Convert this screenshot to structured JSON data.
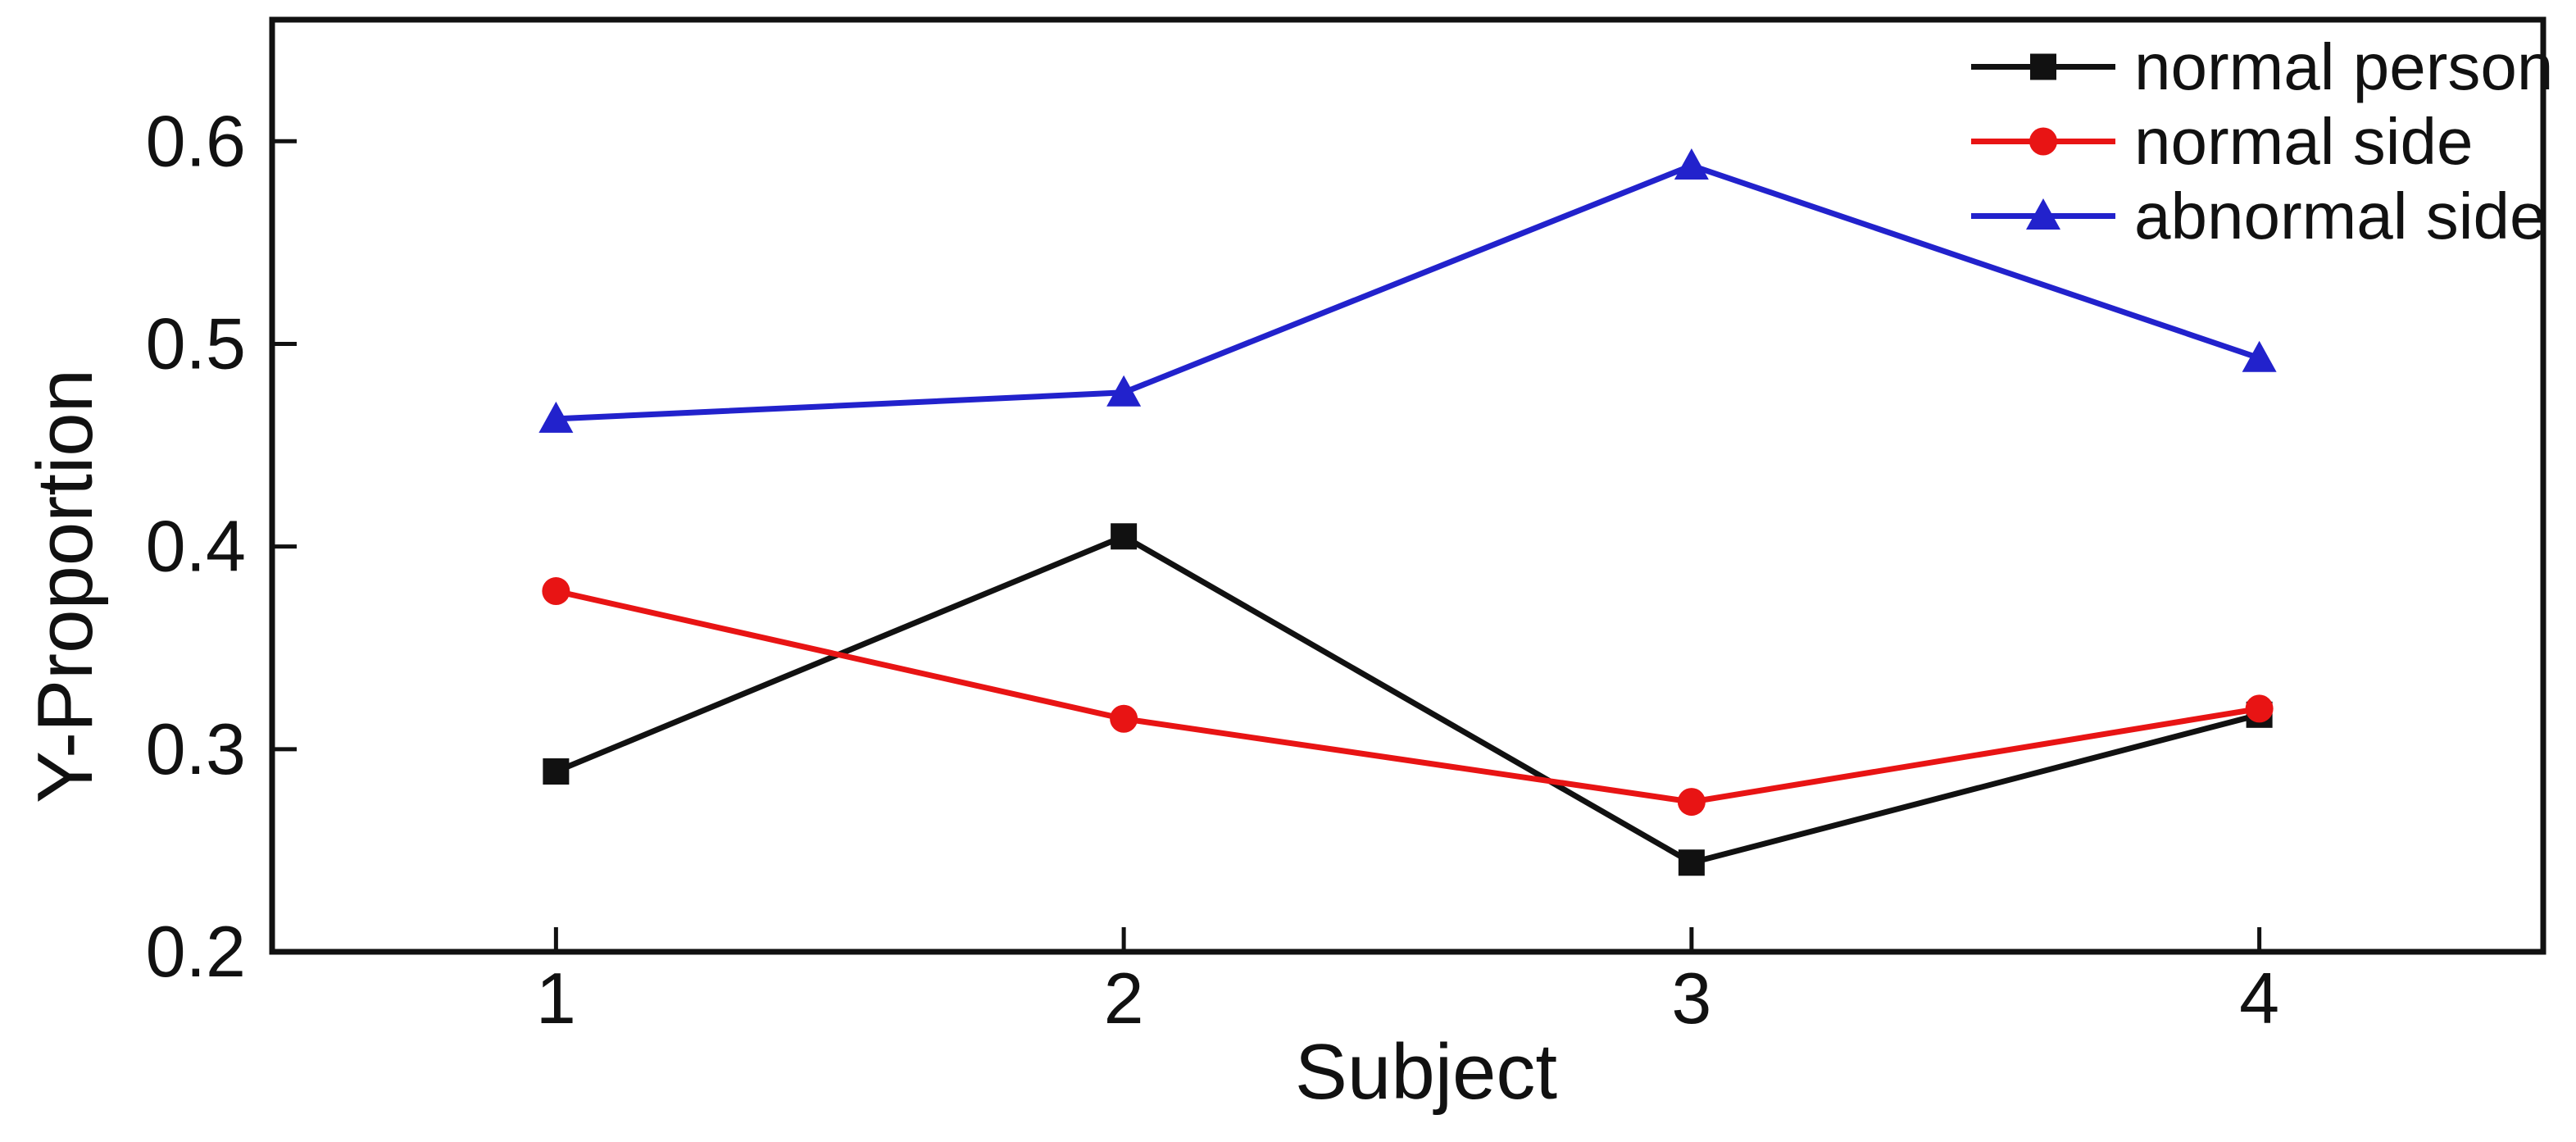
{
  "figure": {
    "background": "#ffffff",
    "axis_color": "#111111"
  },
  "chart_data": {
    "type": "line",
    "title": "",
    "xlabel": "Subject",
    "ylabel": "Y-Proportion",
    "categories": [
      1,
      2,
      3,
      4
    ],
    "x_tick_labels": [
      "1",
      "2",
      "3",
      "4"
    ],
    "y_tick_labels": [
      "0.2",
      "0.3",
      "0.4",
      "0.5",
      "0.6"
    ],
    "y_tick_values": [
      0.2,
      0.3,
      0.4,
      0.5,
      0.6
    ],
    "xlim": [
      0.5,
      4.5
    ],
    "ylim": [
      0.2,
      0.66
    ],
    "grid": false,
    "legend_position": "top-right-inside",
    "series": [
      {
        "name": "normal person",
        "marker": "square",
        "color": "#111111",
        "values": [
          0.289,
          0.405,
          0.244,
          0.317
        ]
      },
      {
        "name": "normal side",
        "marker": "circle",
        "color": "#e81414",
        "values": [
          0.378,
          0.315,
          0.274,
          0.32
        ]
      },
      {
        "name": "abnormal side",
        "marker": "triangle",
        "color": "#2222cc",
        "values": [
          0.463,
          0.476,
          0.588,
          0.493
        ]
      }
    ]
  }
}
